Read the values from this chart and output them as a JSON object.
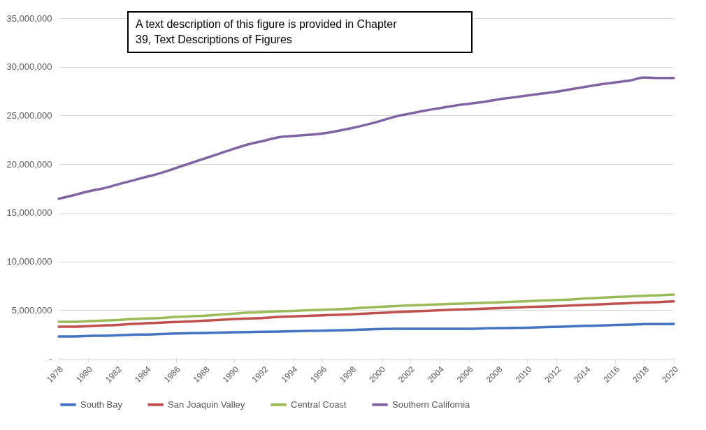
{
  "chart_data": {
    "type": "line",
    "x": [
      1978,
      1979,
      1980,
      1981,
      1982,
      1983,
      1984,
      1985,
      1986,
      1987,
      1988,
      1989,
      1990,
      1991,
      1992,
      1993,
      1994,
      1995,
      1996,
      1997,
      1998,
      1999,
      2000,
      2001,
      2002,
      2003,
      2004,
      2005,
      2006,
      2007,
      2008,
      2009,
      2010,
      2011,
      2012,
      2013,
      2014,
      2015,
      2016,
      2017,
      2018,
      2019,
      2020
    ],
    "series": [
      {
        "name": "South Bay",
        "color": "#4472c4",
        "values": [
          2300000,
          2300000,
          2350000,
          2370000,
          2420000,
          2480000,
          2500000,
          2550000,
          2600000,
          2630000,
          2660000,
          2690000,
          2720000,
          2750000,
          2780000,
          2800000,
          2840000,
          2860000,
          2890000,
          2920000,
          2960000,
          3020000,
          3060000,
          3080000,
          3090000,
          3090000,
          3090000,
          3090000,
          3090000,
          3120000,
          3150000,
          3170000,
          3200000,
          3240000,
          3290000,
          3340000,
          3380000,
          3420000,
          3470000,
          3510000,
          3560000,
          3570000,
          3580000
        ]
      },
      {
        "name": "San Joaquin Valley",
        "color": "#c0504d",
        "values": [
          3300000,
          3300000,
          3360000,
          3420000,
          3480000,
          3580000,
          3650000,
          3720000,
          3780000,
          3840000,
          3920000,
          4000000,
          4080000,
          4140000,
          4200000,
          4300000,
          4350000,
          4410000,
          4470000,
          4520000,
          4580000,
          4650000,
          4720000,
          4800000,
          4860000,
          4920000,
          4990000,
          5050000,
          5100000,
          5150000,
          5200000,
          5260000,
          5320000,
          5370000,
          5420000,
          5480000,
          5540000,
          5600000,
          5660000,
          5720000,
          5790000,
          5830000,
          5900000
        ]
      },
      {
        "name": "Central Coast",
        "color": "#9bbb59",
        "values": [
          3800000,
          3800000,
          3880000,
          3930000,
          3980000,
          4080000,
          4140000,
          4200000,
          4300000,
          4360000,
          4430000,
          4530000,
          4650000,
          4750000,
          4810000,
          4870000,
          4920000,
          4980000,
          5040000,
          5100000,
          5170000,
          5260000,
          5350000,
          5420000,
          5480000,
          5540000,
          5600000,
          5650000,
          5700000,
          5750000,
          5800000,
          5860000,
          5920000,
          5980000,
          6040000,
          6100000,
          6200000,
          6270000,
          6340000,
          6410000,
          6480000,
          6530000,
          6600000
        ]
      },
      {
        "name": "Southern California",
        "color": "#8064a2",
        "values": [
          16450000,
          16800000,
          17200000,
          17500000,
          17900000,
          18300000,
          18700000,
          19100000,
          19600000,
          20100000,
          20600000,
          21100000,
          21600000,
          22050000,
          22400000,
          22750000,
          22900000,
          23000000,
          23150000,
          23400000,
          23700000,
          24050000,
          24450000,
          24900000,
          25200000,
          25500000,
          25750000,
          26000000,
          26200000,
          26400000,
          26650000,
          26850000,
          27050000,
          27250000,
          27450000,
          27700000,
          27950000,
          28200000,
          28400000,
          28600000,
          28900000,
          28850000,
          28850000
        ]
      }
    ],
    "ylim": [
      0,
      35000000
    ],
    "yticks": [
      {
        "value": 0,
        "label": "-"
      },
      {
        "value": 5000000,
        "label": "5,000,000"
      },
      {
        "value": 10000000,
        "label": "10,000,000"
      },
      {
        "value": 15000000,
        "label": "15,000,000"
      },
      {
        "value": 20000000,
        "label": "20,000,000"
      },
      {
        "value": 25000000,
        "label": "25,000,000"
      },
      {
        "value": 30000000,
        "label": "30,000,000"
      },
      {
        "value": 35000000,
        "label": "35,000,000"
      }
    ],
    "xlim": [
      1978,
      2020
    ],
    "xticks": [
      1978,
      1980,
      1982,
      1984,
      1986,
      1988,
      1990,
      1992,
      1994,
      1996,
      1998,
      2000,
      2002,
      2004,
      2006,
      2008,
      2010,
      2012,
      2014,
      2016,
      2018,
      2020
    ],
    "grid": "y",
    "legend": "bottom",
    "marker": "none",
    "line_style": "solid",
    "annotations": [
      "A text description of this figure is provided in Chapter 39, Text Descriptions of Figures"
    ]
  }
}
